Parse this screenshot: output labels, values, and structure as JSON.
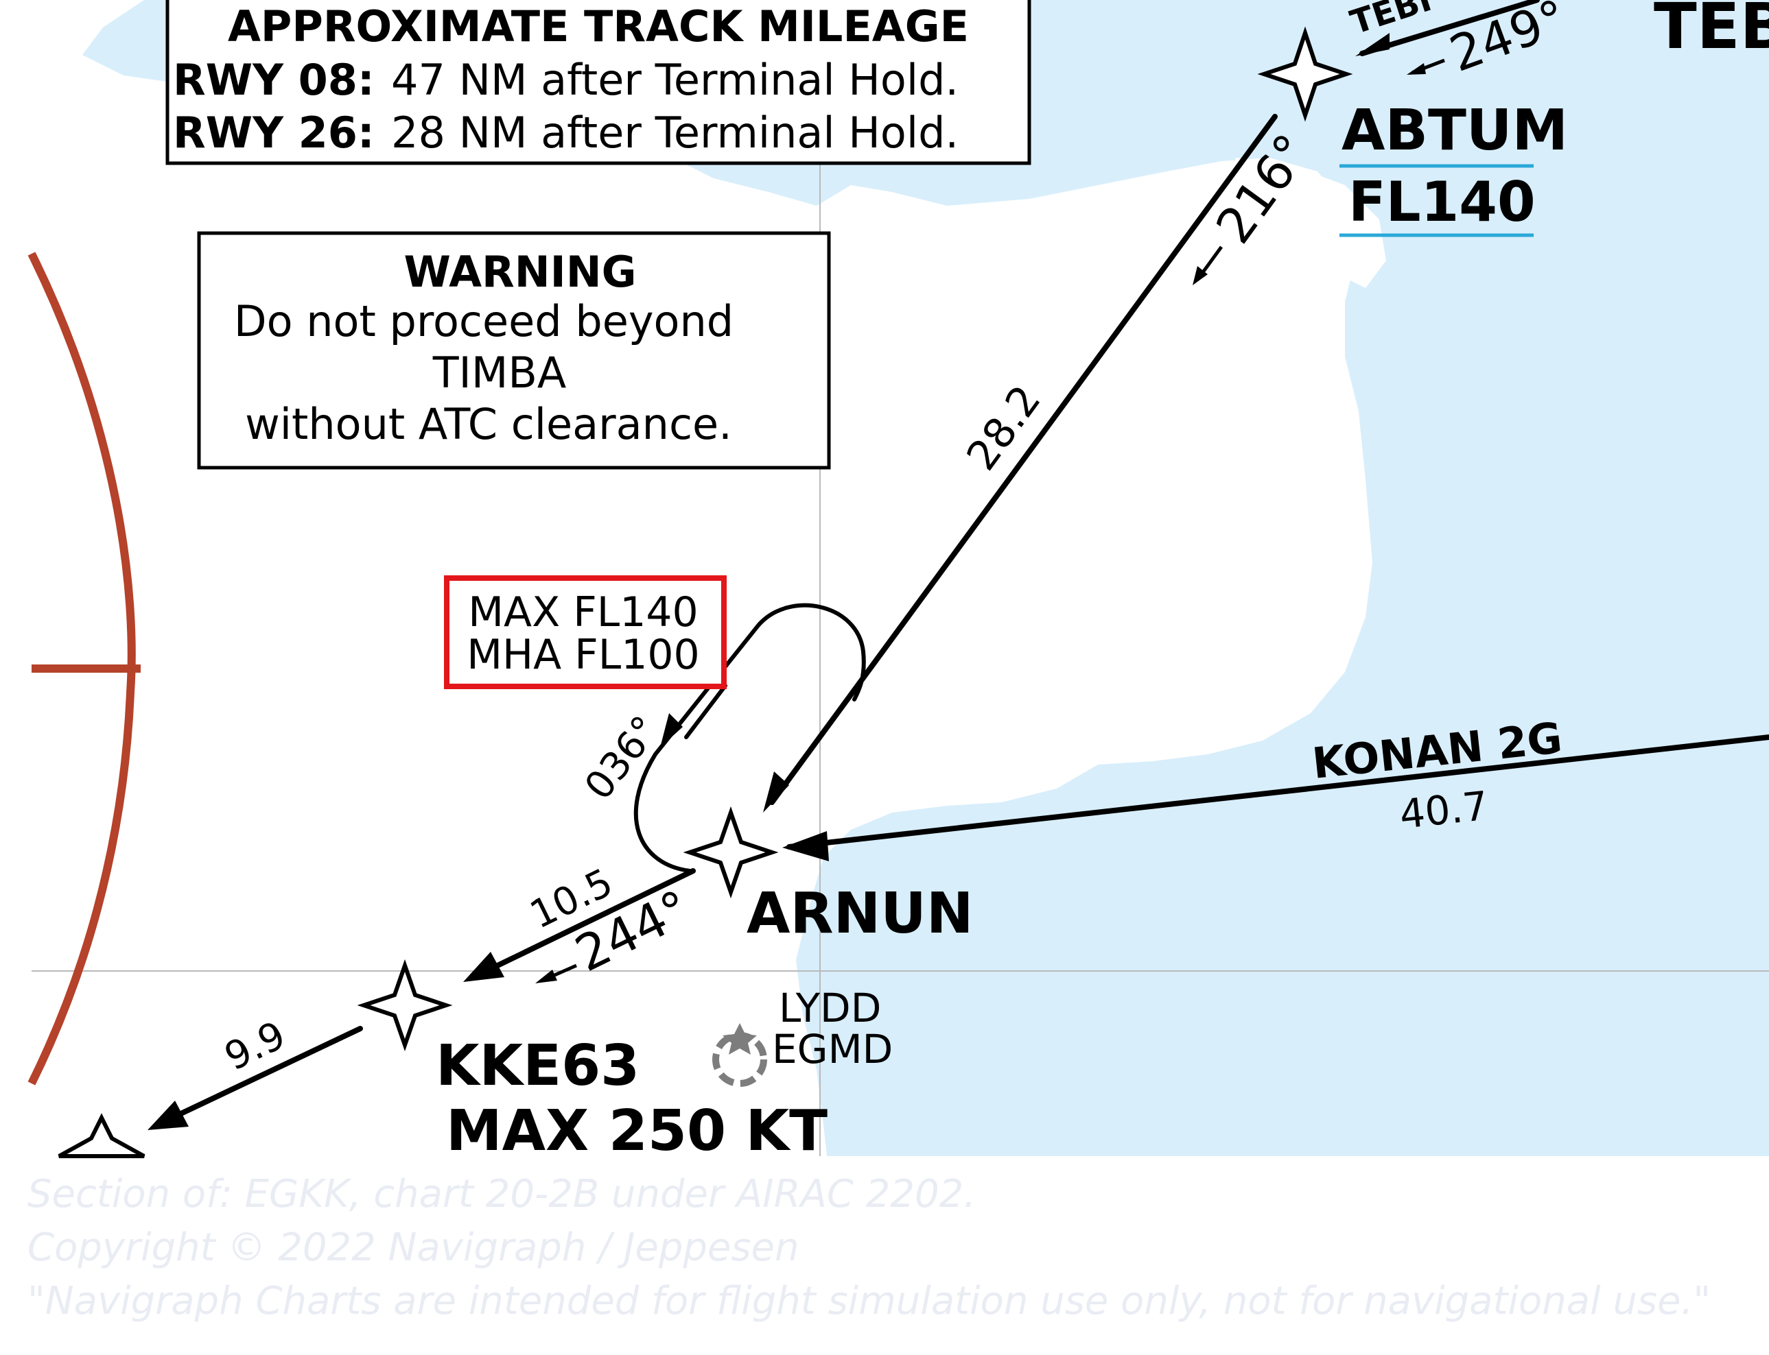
{
  "colors": {
    "sea": "#d8eefb",
    "land": "#ffffff",
    "route": "#000000",
    "ctr_ring": "#b5422a",
    "fl_blue": "#2aa8d8",
    "speed_magenta": "#b0135e",
    "highlight_red": "#e3161b",
    "airport_grey": "#7d7d7d",
    "credit_grey": "#e8ebf2",
    "grid": "#b9b9b9"
  },
  "mileage_box": {
    "title": "APPROXIMATE TRACK MILEAGE",
    "line1_rwy": "RWY 08:",
    "line1_text": "47 NM after Terminal Hold.",
    "line2_rwy": "RWY 26:",
    "line2_text": "28 NM after Terminal Hold."
  },
  "warning_box": {
    "title": "WARNING",
    "line1": "Do not proceed beyond",
    "line2": "TIMBA",
    "line3": "without ATC clearance."
  },
  "hold_limits": {
    "line1": "MAX FL140",
    "line2": "MHA FL100"
  },
  "waypoints": {
    "abtum": {
      "name": "ABTUM",
      "altitude": "FL140"
    },
    "arnun": {
      "name": "ARNUN"
    },
    "kke63": {
      "name": "KKE63",
      "speed": "MAX 250 KT"
    },
    "teb_partial": "TEB",
    "tebi_partial": "TEBI"
  },
  "airport": {
    "code1": "LYDD",
    "code2": "EGMD"
  },
  "legs": {
    "abtum_arnun_track": "216°",
    "abtum_arnun_dist": "28.2",
    "teb_abtum_track": "249°",
    "hold_inbound": "036°",
    "arnun_kke63_track": "244°",
    "arnun_kke63_dist": "10.5",
    "kke63_next_dist": "9.9",
    "konan_name": "KONAN 2G",
    "konan_dist": "40.7"
  },
  "credit": {
    "line1": "Section of: EGKK, chart 20-2B under AIRAC 2202.",
    "line2": "Copyright © 2022 Navigraph / Jeppesen",
    "line3": "\"Navigraph Charts are intended for flight simulation use only, not for navigational use.\""
  }
}
